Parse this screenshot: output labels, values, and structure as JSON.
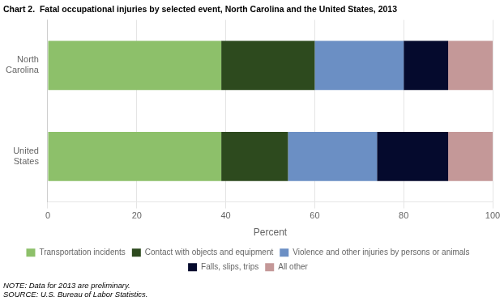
{
  "chart_data": {
    "type": "bar",
    "orientation": "horizontal",
    "stacked": true,
    "title": "Chart 2.  Fatal occupational injuries by selected event, North Carolina and the United States, 2013",
    "categories": [
      "North\nCarolina",
      "United\nStates"
    ],
    "series": [
      {
        "name": "Transportation incidents",
        "color": "#8dc06a",
        "values": [
          39,
          39
        ]
      },
      {
        "name": "Contact with objects and equipment",
        "color": "#2d4a1e",
        "values": [
          21,
          15
        ]
      },
      {
        "name": "Violence and other injuries by persons or animals",
        "color": "#6b8fc4",
        "values": [
          20,
          20
        ]
      },
      {
        "name": "Falls, slips, trips",
        "color": "#050a2d",
        "values": [
          10,
          16
        ]
      },
      {
        "name": "All other",
        "color": "#c49898",
        "values": [
          10,
          10
        ]
      }
    ],
    "xlabel": "Percent",
    "xlim": [
      0,
      100
    ],
    "xticks": [
      0,
      20,
      40,
      60,
      80,
      100
    ],
    "grid": true,
    "legend": "bottom",
    "note": "NOTE: Data for 2013 are preliminary.\nSOURCE: U.S. Bureau of Labor Statistics."
  }
}
